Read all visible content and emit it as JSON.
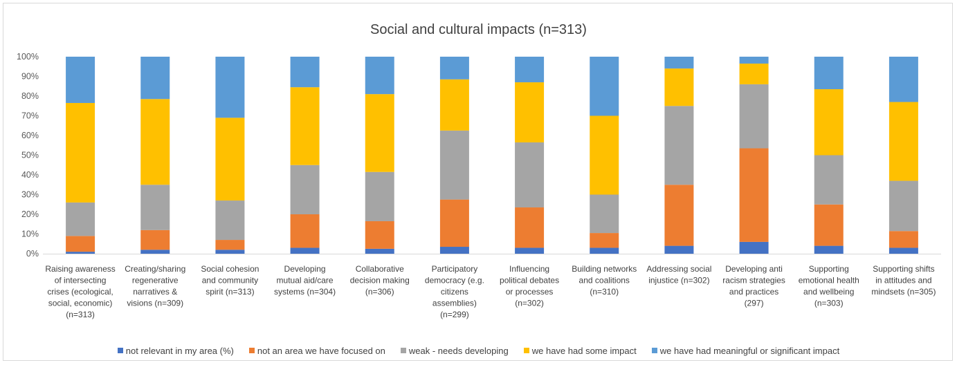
{
  "chart_data": {
    "type": "bar",
    "stacked": true,
    "percent_stacked": true,
    "title": "Social and cultural impacts (n=313)",
    "xlabel": "",
    "ylabel": "",
    "ylim": [
      0,
      100
    ],
    "y_ticks": [
      "0%",
      "10%",
      "20%",
      "30%",
      "40%",
      "50%",
      "60%",
      "70%",
      "80%",
      "90%",
      "100%"
    ],
    "grid": false,
    "legend_position": "bottom",
    "categories": [
      [
        "Raising awareness",
        "of intersecting",
        "crises (ecological,",
        "social, economic)",
        "(n=313)"
      ],
      [
        "Creating/sharing",
        "regenerative",
        "narratives &",
        "visions (n=309)"
      ],
      [
        "Social cohesion",
        "and community",
        "spirit (n=313)"
      ],
      [
        "Developing",
        "mutual aid/care",
        "systems (n=304)"
      ],
      [
        "Collaborative",
        "decision making",
        "(n=306)"
      ],
      [
        "Participatory",
        "democracy (e.g.",
        "citizens",
        "assemblies)",
        "(n=299)"
      ],
      [
        "Influencing",
        "political debates",
        "or processes",
        "(n=302)"
      ],
      [
        "Building networks",
        "and coalitions",
        "(n=310)"
      ],
      [
        "Addressing social",
        "injustice (n=302)"
      ],
      [
        "Developing anti",
        "racism strategies",
        "and practices",
        "(297)"
      ],
      [
        "Supporting",
        "emotional health",
        "and wellbeing",
        "(n=303)"
      ],
      [
        "Supporting shifts",
        "in attitudes and",
        "mindsets (n=305)"
      ]
    ],
    "series": [
      {
        "name": "not relevant in my area (%)",
        "color": "#4472C4",
        "values": [
          1,
          2,
          2,
          3,
          2.5,
          3.5,
          3,
          3,
          4,
          6,
          4,
          3
        ]
      },
      {
        "name": "not an area we have focused on",
        "color": "#ED7D31",
        "values": [
          8,
          10,
          5,
          17,
          14,
          24,
          20.5,
          7.5,
          31,
          47.5,
          21,
          8.5
        ]
      },
      {
        "name": "weak - needs developing",
        "color": "#A5A5A5",
        "values": [
          17,
          23,
          20,
          25,
          25,
          35,
          33,
          19.5,
          40,
          32.5,
          25,
          25.5
        ]
      },
      {
        "name": "we have had some impact",
        "color": "#FFC000",
        "values": [
          50.5,
          43.5,
          42,
          39.5,
          39.5,
          26,
          30.5,
          40,
          19,
          10.5,
          33.5,
          40
        ]
      },
      {
        "name": "we have had meaningful or significant impact",
        "color": "#5B9BD5",
        "values": [
          23.5,
          21.5,
          31,
          15.5,
          19,
          11.5,
          13,
          30,
          6,
          3.5,
          16.5,
          23
        ]
      }
    ]
  }
}
